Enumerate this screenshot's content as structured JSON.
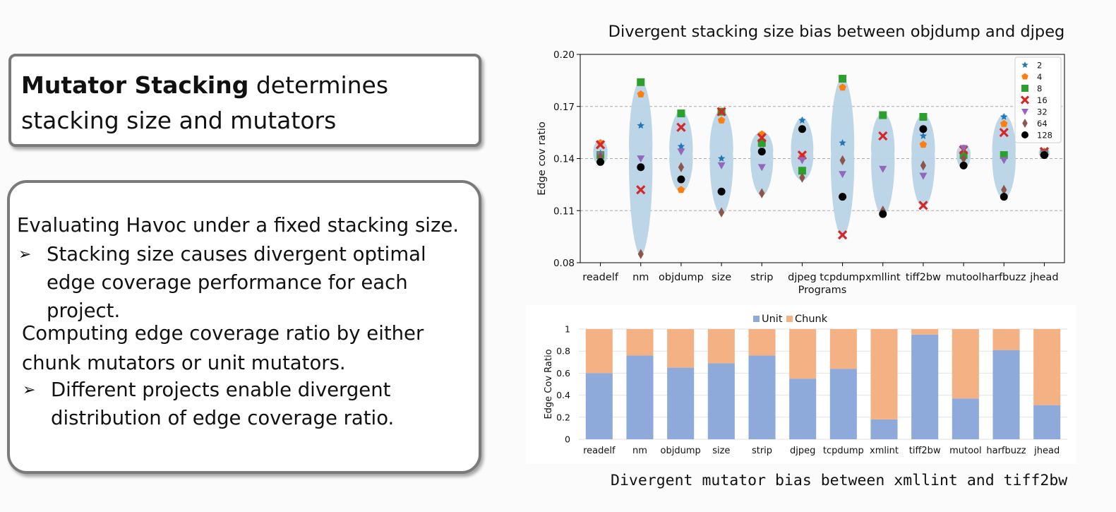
{
  "panel1": {
    "title_bold": "Mutator Stacking",
    "title_rest": " determines stacking size and mutators"
  },
  "panel2": {
    "para1": "Evaluating Havoc under a fixed stacking size.",
    "bullet1": "Stacking size causes divergent optimal edge coverage performance for each project.",
    "para2": "Computing edge coverage ratio by either chunk mutators or unit mutators.",
    "bullet2": "Different projects enable divergent distribution of edge coverage ratio.",
    "bullet_icon": "arrowhead-bullet-icon"
  },
  "chart_data": [
    {
      "type": "violin-scatter",
      "title": "Divergent stacking size bias between objdump and djpeg",
      "xlabel": "Programs",
      "ylabel": "Edge cov ratio",
      "ylim": [
        0.08,
        0.2
      ],
      "yticks": [
        "0.08",
        "0.11",
        "0.14",
        "0.17",
        "0.20"
      ],
      "grid": "horizontal dashed",
      "legend_position": "top-right",
      "violin_color": "#b8d3e6",
      "categories": [
        "readelf",
        "nm",
        "objdump",
        "size",
        "strip",
        "djpeg",
        "tcpdump",
        "xmllint",
        "tiff2bw",
        "mutool",
        "harfbuzz",
        "jhead"
      ],
      "series": [
        {
          "name": "2",
          "marker": "star",
          "color": "#1f77b4",
          "values": [
            0.143,
            0.159,
            0.147,
            0.14,
            0.148,
            0.162,
            0.149,
            0.165,
            0.153,
            0.146,
            0.164,
            0.144
          ]
        },
        {
          "name": "4",
          "marker": "pentagon",
          "color": "#ff7f0e",
          "values": [
            0.149,
            0.177,
            0.122,
            0.162,
            0.154,
            0.141,
            0.181,
            0.165,
            0.148,
            0.143,
            0.16,
            0.144
          ]
        },
        {
          "name": "8",
          "marker": "square",
          "color": "#2ca02c",
          "values": [
            0.142,
            0.184,
            0.166,
            0.167,
            0.149,
            0.133,
            0.186,
            0.165,
            0.164,
            0.142,
            0.142,
            0.143
          ]
        },
        {
          "name": "16",
          "marker": "x",
          "color": "#d62728",
          "values": [
            0.148,
            0.122,
            0.158,
            0.167,
            0.152,
            0.142,
            0.096,
            0.153,
            0.113,
            0.145,
            0.155,
            0.144
          ]
        },
        {
          "name": "32",
          "marker": "triangle",
          "color": "#9467bd",
          "values": [
            0.142,
            0.14,
            0.144,
            0.136,
            0.135,
            0.139,
            0.131,
            0.134,
            0.13,
            0.146,
            0.139,
            0.143
          ]
        },
        {
          "name": "64",
          "marker": "diamond",
          "color": "#8c564b",
          "values": [
            0.141,
            0.085,
            0.135,
            0.109,
            0.12,
            0.129,
            0.139,
            0.11,
            0.136,
            0.14,
            0.122,
            0.143
          ]
        },
        {
          "name": "128",
          "marker": "circle",
          "color": "#000000",
          "values": [
            0.138,
            0.135,
            0.128,
            0.121,
            0.144,
            0.157,
            0.118,
            0.108,
            0.157,
            0.136,
            0.118,
            0.142
          ]
        }
      ]
    },
    {
      "type": "stacked-bar",
      "caption": "Divergent mutator bias between xmllint and tiff2bw",
      "ylabel": "Edge Cov Ratio",
      "ylim": [
        0,
        1
      ],
      "yticks": [
        "0",
        "0.2",
        "0.4",
        "0.6",
        "0.8",
        "1"
      ],
      "legend_position": "top-center",
      "categories": [
        "readelf",
        "nm",
        "objdump",
        "size",
        "strip",
        "djpeg",
        "tcpdump",
        "xmlint",
        "tiff2bw",
        "mutool",
        "harfbuzz",
        "jhead"
      ],
      "series": [
        {
          "name": "Unit",
          "color": "#8eaadb",
          "values": [
            0.6,
            0.76,
            0.65,
            0.69,
            0.76,
            0.55,
            0.64,
            0.18,
            0.95,
            0.37,
            0.81,
            0.31
          ]
        },
        {
          "name": "Chunk",
          "color": "#f4b183",
          "values": [
            0.4,
            0.24,
            0.35,
            0.31,
            0.24,
            0.45,
            0.36,
            0.82,
            0.05,
            0.63,
            0.19,
            0.69
          ]
        }
      ]
    }
  ]
}
